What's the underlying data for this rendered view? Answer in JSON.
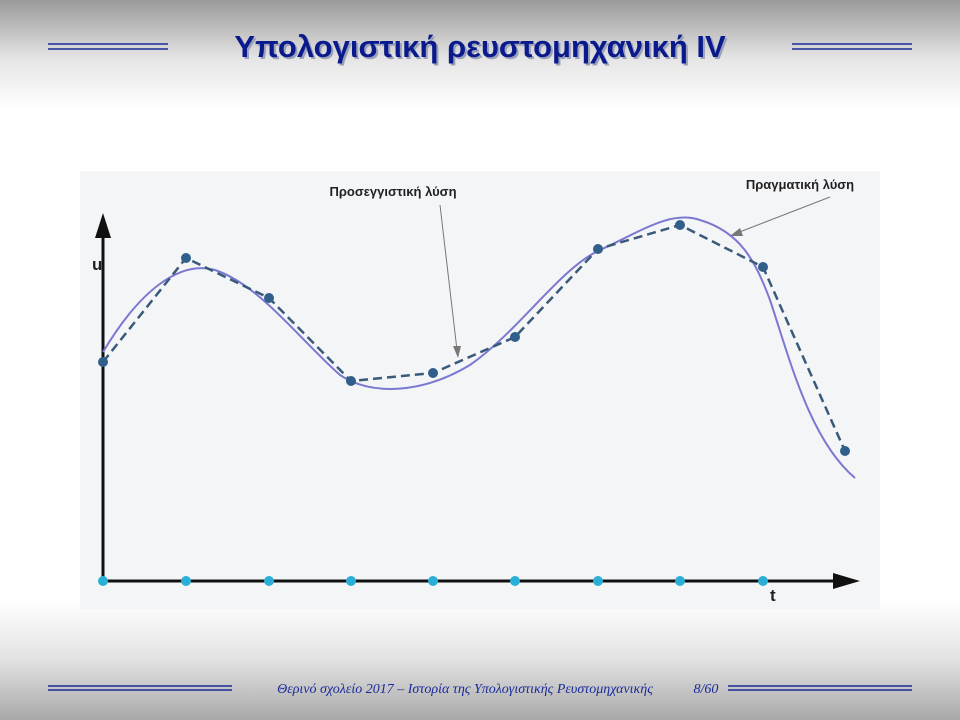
{
  "header": {
    "title": "Υπολογιστική ρευστομηχανική IV"
  },
  "figure": {
    "y_axis_label": "u",
    "x_axis_label": "t",
    "annotations": [
      "Προσεγγιστική λύση",
      "Πραγματική λύση"
    ]
  },
  "footer": {
    "text": "Θερινό σχολείο 2017 – Ιστορία της Υπολογιστικής Ρευστομηχανικής",
    "page": "8/60"
  }
}
